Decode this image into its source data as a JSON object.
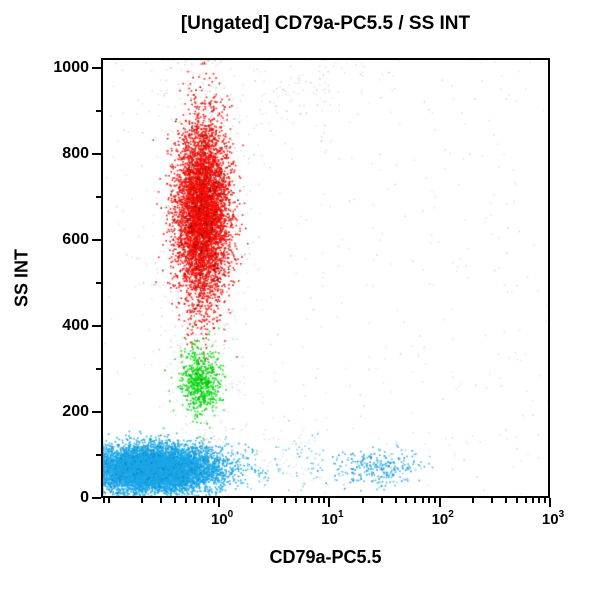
{
  "chart_data": {
    "type": "scatter",
    "title": "[Ungated] CD79a-PC5.5 / SS INT",
    "xlabel": "CD79a-PC5.5",
    "ylabel": "SS INT",
    "x_scale": "log",
    "x_range": [
      0.085,
      1000
    ],
    "x_major_tick_values": [
      1,
      10,
      100,
      1000
    ],
    "x_major_ticks": [
      {
        "base": "10",
        "exp": "0"
      },
      {
        "base": "10",
        "exp": "1"
      },
      {
        "base": "10",
        "exp": "2"
      },
      {
        "base": "10",
        "exp": "3"
      }
    ],
    "y_scale": "linear",
    "y_range": [
      0,
      1024
    ],
    "y_major_tick_values": [
      0,
      200,
      400,
      600,
      800,
      1000
    ],
    "y_minor_step": 100,
    "grid": false,
    "legend": null,
    "background": "#ffffff",
    "axis_color": "#000000",
    "populations": [
      {
        "name": "debris-gray-halo-upper",
        "color": "#c4c4c4",
        "variants": [
          [
            "#9e9e9e",
            0.18
          ]
        ],
        "alpha": 0.6,
        "size": 1.4,
        "count": 620,
        "x": {
          "dist": "lognormal",
          "mean": -0.15,
          "sd": 0.2
        },
        "y": {
          "dist": "normal",
          "mean": 660,
          "sd": 225
        }
      },
      {
        "name": "debris-gray-halo-mid",
        "color": "#c4c4c4",
        "variants": [
          [
            "#9e9e9e",
            0.18
          ]
        ],
        "alpha": 0.6,
        "size": 1.4,
        "count": 150,
        "x": {
          "dist": "lognormal",
          "mean": -0.16,
          "sd": 0.17
        },
        "y": {
          "dist": "normal",
          "mean": 300,
          "sd": 95
        }
      },
      {
        "name": "debris-gray-uniform",
        "color": "#c6c6c6",
        "variants": [
          [
            "#a8a8a8",
            0.2
          ]
        ],
        "alpha": 0.55,
        "size": 1.4,
        "count": 480,
        "x": {
          "dist": "loguniform",
          "min": -1.07,
          "max": 3.0
        },
        "y": {
          "dist": "uniform",
          "min": 5,
          "max": 1020
        }
      },
      {
        "name": "debris-gray-top-middle",
        "color": "#c4c4c4",
        "variants": [
          [
            "#a0a0a0",
            0.2
          ]
        ],
        "alpha": 0.6,
        "size": 1.4,
        "count": 100,
        "x": {
          "dist": "lognormal",
          "mean": 0.82,
          "sd": 0.3
        },
        "y": {
          "dist": "normal",
          "mean": 945,
          "sd": 50
        }
      },
      {
        "name": "debris-gray-low-middle",
        "color": "#c4c4c4",
        "variants": [],
        "alpha": 0.55,
        "size": 1.4,
        "count": 80,
        "x": {
          "dist": "loguniform",
          "min": -0.2,
          "max": 1.0
        },
        "y": {
          "dist": "normal",
          "mean": 95,
          "sd": 45
        }
      },
      {
        "name": "granulocytes-red",
        "color": "#f70b00",
        "variants": [
          [
            "#a50d0d",
            0.1
          ],
          [
            "#520606",
            0.035
          ]
        ],
        "alpha": 0.92,
        "size": 1.6,
        "count": 5400,
        "x": {
          "dist": "lognormal",
          "mean": -0.15,
          "sd": 0.12
        },
        "y": {
          "dist": "normal",
          "mean": 665,
          "sd": 107
        }
      },
      {
        "name": "monocytes-green",
        "color": "#00dc0a",
        "variants": [
          [
            "#00a510",
            0.15
          ]
        ],
        "alpha": 0.92,
        "size": 1.6,
        "count": 640,
        "x": {
          "dist": "lognormal",
          "mean": -0.17,
          "sd": 0.09
        },
        "y": {
          "dist": "normal",
          "mean": 272,
          "sd": 42
        }
      },
      {
        "name": "lymphocytes-blue",
        "color": "#1aa7e8",
        "variants": [
          [
            "#0d7ec2",
            0.1
          ]
        ],
        "alpha": 0.92,
        "size": 1.6,
        "count": 8200,
        "x": {
          "dist": "lognormal",
          "mean": -0.6,
          "sd": 0.3
        },
        "y": {
          "dist": "normal",
          "mean": 68,
          "sd": 27
        }
      },
      {
        "name": "scatter-blue-sparse",
        "color": "#57bde8",
        "variants": [
          [
            "#1aa7e8",
            0.4
          ]
        ],
        "alpha": 0.8,
        "size": 1.5,
        "count": 90,
        "x": {
          "dist": "loguniform",
          "min": -0.05,
          "max": 0.95
        },
        "y": {
          "dist": "normal",
          "mean": 85,
          "sd": 40
        }
      },
      {
        "name": "b-cells-blue",
        "color": "#2aabe4",
        "variants": [
          [
            "#0d7ec2",
            0.25
          ],
          [
            "#7fd0ee",
            0.2
          ]
        ],
        "alpha": 0.9,
        "size": 1.6,
        "count": 290,
        "x": {
          "dist": "lognormal",
          "mean": 1.45,
          "sd": 0.2
        },
        "y": {
          "dist": "normal",
          "mean": 72,
          "sd": 22
        }
      }
    ]
  }
}
